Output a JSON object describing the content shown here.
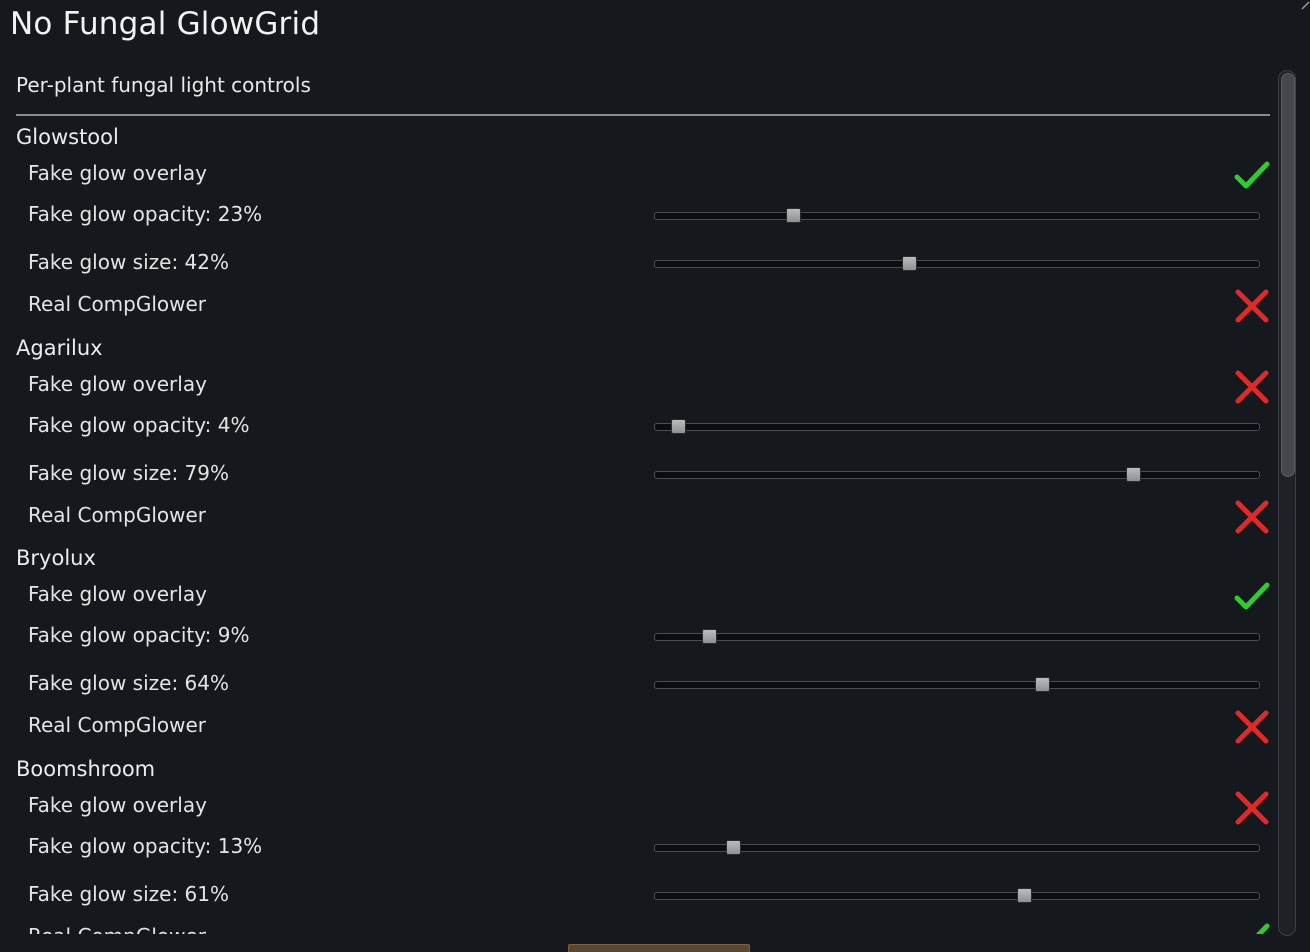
{
  "window": {
    "title": "No Fungal GlowGrid"
  },
  "header": {
    "text": "Per-plant fungal light controls"
  },
  "colors": {
    "check": "#2ecc2e",
    "cross": "#e02a2a",
    "background": "#15191e"
  },
  "plants": [
    {
      "name": "Glowstool",
      "fake_overlay": {
        "label": "Fake glow overlay",
        "checked": true
      },
      "opacity": {
        "label": "Fake glow opacity: 23%",
        "value": 0.23
      },
      "size": {
        "label": "Fake glow size: 42%",
        "value": 0.42
      },
      "real_glower": {
        "label": "Real CompGlower",
        "checked": false
      }
    },
    {
      "name": "Agarilux",
      "fake_overlay": {
        "label": "Fake glow overlay",
        "checked": false
      },
      "opacity": {
        "label": "Fake glow opacity: 4%",
        "value": 0.04
      },
      "size": {
        "label": "Fake glow size: 79%",
        "value": 0.79
      },
      "real_glower": {
        "label": "Real CompGlower",
        "checked": false
      }
    },
    {
      "name": "Bryolux",
      "fake_overlay": {
        "label": "Fake glow overlay",
        "checked": true
      },
      "opacity": {
        "label": "Fake glow opacity: 9%",
        "value": 0.09
      },
      "size": {
        "label": "Fake glow size: 64%",
        "value": 0.64
      },
      "real_glower": {
        "label": "Real CompGlower",
        "checked": false
      }
    },
    {
      "name": "Boomshroom",
      "fake_overlay": {
        "label": "Fake glow overlay",
        "checked": false
      },
      "opacity": {
        "label": "Fake glow opacity: 13%",
        "value": 0.13
      },
      "size": {
        "label": "Fake glow size: 61%",
        "value": 0.61
      },
      "real_glower": {
        "label": "Real CompGlower",
        "checked": true
      }
    }
  ]
}
